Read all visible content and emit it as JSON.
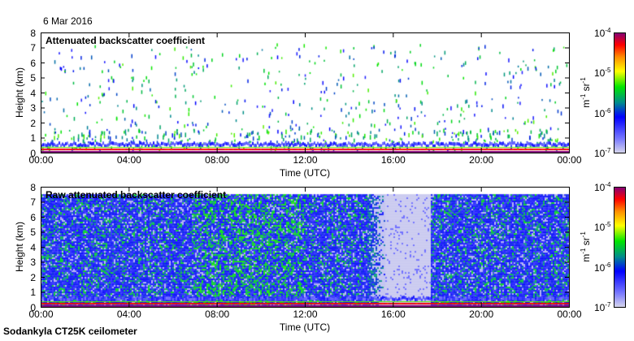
{
  "date_label": "6 Mar 2016",
  "footer": "Sodankyla CT25K ceilometer",
  "chart_data": [
    {
      "type": "heatmap",
      "title": "Attenuated backscatter coefficient",
      "xlabel": "Time (UTC)",
      "ylabel": "Height (km)",
      "xlim": [
        0,
        24
      ],
      "ylim": [
        0,
        8
      ],
      "x_ticks": [
        "00:00",
        "04:00",
        "08:00",
        "12:00",
        "16:00",
        "20:00",
        "00:00"
      ],
      "y_ticks": [
        "0",
        "1",
        "2",
        "3",
        "4",
        "5",
        "6",
        "7",
        "8"
      ],
      "features": {
        "boundary_layer_top_km": 0.3,
        "sparse_cloud_echoes": true
      },
      "colorbar": {
        "label_base": "m",
        "label_exp1": "-1",
        "label_mid": " sr",
        "label_exp2": "-1",
        "ticks": [
          {
            "base": "10",
            "exp": "-4"
          },
          {
            "base": "10",
            "exp": "-5"
          },
          {
            "base": "10",
            "exp": "-6"
          },
          {
            "base": "10",
            "exp": "-7"
          }
        ],
        "range_log10": [
          -7,
          -4
        ]
      }
    },
    {
      "type": "heatmap",
      "title": "Raw attenuated backscatter coefficient",
      "xlabel": "Time (UTC)",
      "ylabel": "Height (km)",
      "xlim": [
        0,
        24
      ],
      "ylim": [
        0,
        8
      ],
      "x_ticks": [
        "00:00",
        "04:00",
        "08:00",
        "12:00",
        "16:00",
        "20:00",
        "00:00"
      ],
      "y_ticks": [
        "0",
        "1",
        "2",
        "3",
        "4",
        "5",
        "6",
        "7",
        "8"
      ],
      "features": {
        "noise_top_km": 7.5,
        "low_noise_gap_hours": [
          15.6,
          17.7
        ]
      },
      "colorbar": {
        "label_base": "m",
        "label_exp1": "-1",
        "label_mid": " sr",
        "label_exp2": "-1",
        "ticks": [
          {
            "base": "10",
            "exp": "-4"
          },
          {
            "base": "10",
            "exp": "-5"
          },
          {
            "base": "10",
            "exp": "-6"
          },
          {
            "base": "10",
            "exp": "-7"
          }
        ],
        "range_log10": [
          -7,
          -4
        ]
      }
    }
  ]
}
